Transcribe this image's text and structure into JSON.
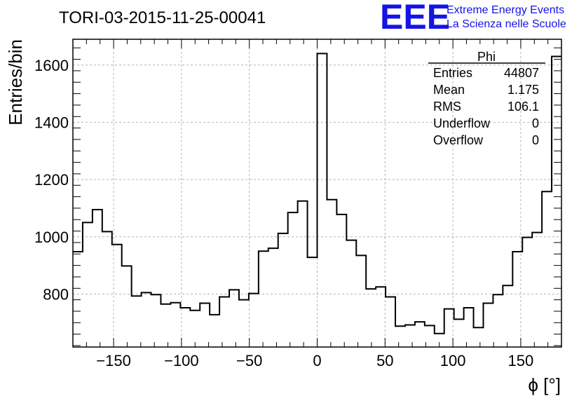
{
  "chart_data": {
    "type": "histogram",
    "title": "TORI-03-2015-11-25-00041",
    "xlabel": "ϕ [°]",
    "ylabel": "Entries/bin",
    "xlim": [
      -180,
      180
    ],
    "ylim": [
      615,
      1690
    ],
    "bin_width": 7.2,
    "grid": true,
    "x_ticks": [
      -150,
      -100,
      -50,
      0,
      50,
      100,
      150
    ],
    "x_tick_labels": [
      "−150",
      "−100",
      "−50",
      "0",
      "50",
      "100",
      "150"
    ],
    "y_ticks": [
      800,
      1000,
      1200,
      1400,
      1600
    ],
    "y_tick_labels": [
      "800",
      "1000",
      "1200",
      "1400",
      "1600"
    ],
    "values": [
      948,
      1050,
      1095,
      1018,
      973,
      898,
      793,
      805,
      798,
      765,
      770,
      752,
      743,
      768,
      728,
      790,
      815,
      780,
      802,
      950,
      960,
      1012,
      1085,
      1125,
      928,
      1640,
      1130,
      1078,
      988,
      935,
      818,
      825,
      790,
      688,
      692,
      703,
      690,
      662,
      748,
      712,
      752,
      683,
      768,
      798,
      830,
      948,
      998,
      1015,
      1158,
      1630
    ],
    "stats": {
      "name": "Phi",
      "rows": [
        {
          "label": "Entries",
          "value": "44807"
        },
        {
          "label": "Mean",
          "value": "1.175"
        },
        {
          "label": "RMS",
          "value": "106.1"
        },
        {
          "label": "Underflow",
          "value": "0"
        },
        {
          "label": "Overflow",
          "value": "0"
        }
      ]
    }
  },
  "logo": {
    "mark": "EEE",
    "line1": "Extreme Energy Events",
    "line2": "La Scienza nelle Scuole",
    "color": "#1414e6"
  }
}
